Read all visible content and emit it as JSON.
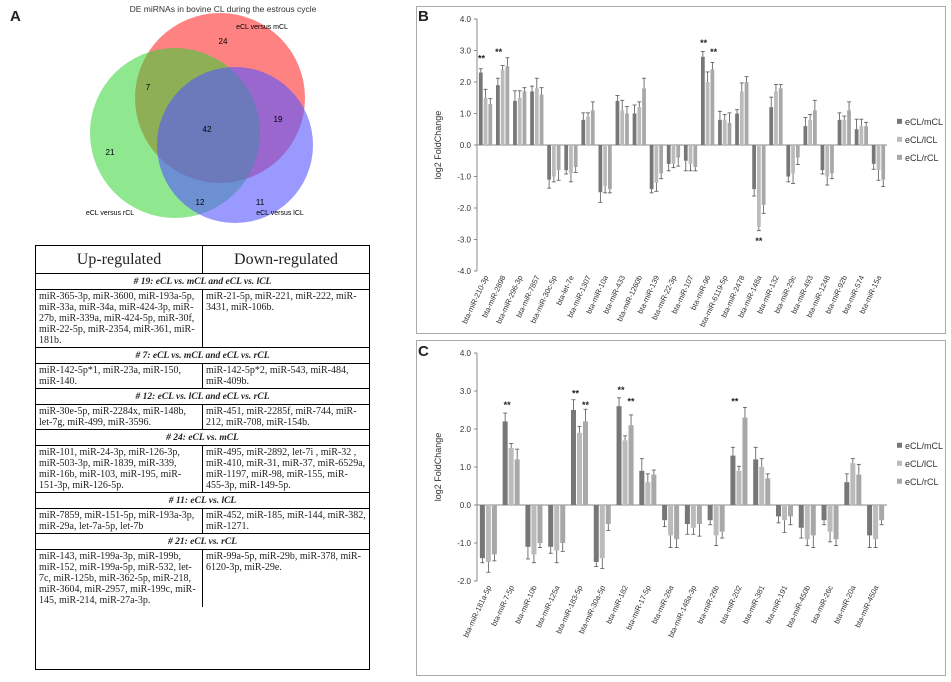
{
  "panels": {
    "a": "A",
    "b": "B",
    "c": "C"
  },
  "venn": {
    "title": "DE miRNAs in bovine CL during the estrous cycle",
    "sets": [
      {
        "name": "eCL versus mCL",
        "color": "#ff5a5a"
      },
      {
        "name": "eCL versus rCL",
        "color": "#3cdc3c"
      },
      {
        "name": "eCL versus lCL",
        "color": "#5a5aff"
      }
    ],
    "counts": {
      "only_m": "24",
      "only_r": "21",
      "only_l": "11",
      "m_r": "7",
      "m_l": "19",
      "r_l": "12",
      "all": "42"
    }
  },
  "table": {
    "headers": [
      "Up-regulated",
      "Down-regulated"
    ],
    "groups": [
      {
        "title": "# 19: eCL vs. mCL and eCL vs. lCL",
        "up": "miR-365-3p, miR-3600, miR-193a-5p, miR-33a, miR-34a, miR-424-3p, miR-27b, miR-339a, miR-424-5p, miR-30f, miR-22-5p, miR-2354, miR-361, miR-181b.",
        "down": "miR-21-5p, miR-221, miR-222, miR-3431, miR-106b."
      },
      {
        "title": "# 7: eCL vs. mCL and eCL vs. rCL",
        "up": "miR-142-5p*1, miR-23a, miR-150, miR-140.",
        "down": "miR-142-5p*2, miR-543, miR-484, miR-409b."
      },
      {
        "title": "# 12: eCL vs. lCL and eCL vs. rCL",
        "up": "miR-30e-5p, miR-2284x, miR-148b, let-7g, miR-499, miR-3596.",
        "down": "miR-451, miR-2285f, miR-744, miR-212, miR-708, miR-154b."
      },
      {
        "title": "# 24: eCL vs. mCL",
        "up": "miR-101, miR-24-3p, miR-126-3p, miR-503-3p, miR-1839, miR-339, miR-16b, miR-103, miR-195, miR-151-3p, miR-126-5p.",
        "down": "miR-495, miR-2892, let-7i , miR-32 , miR-410, miR-31, miR-37, miR-6529a, miR-1197, miR-98, miR-155, miR-455-3p, miR-149-5p."
      },
      {
        "title": "# 11: eCL vs. lCL",
        "up": "miR-7859, miR-151-5p, miR-193a-3p, miR-29a, let-7a-5p, let-7b",
        "down": "miR-452, miR-185, miR-144, miR-382, miR-1271."
      },
      {
        "title": "# 21: eCL vs. rCL",
        "up": "miR-143, miR-199a-3p, miR-199b, miR-152, miR-199a-5p, miR-532, let-7c, miR-125b, miR-362-5p, miR-218, miR-3604, miR-2957, miR-199c, miR-145, miR-214, miR-27a-3p.",
        "down": "miR-99a-5p, miR-29b, miR-378, miR-6120-3p, miR-29e."
      }
    ]
  },
  "chart_data": [
    {
      "id": "B",
      "type": "bar",
      "ylabel": "log2 FoldChange",
      "ylim": [
        -4,
        4
      ],
      "yticks": [
        "4.0",
        "3.0",
        "2.0",
        "1.0",
        "0.0",
        "-1.0",
        "-2.0",
        "-3.0",
        "-4.0"
      ],
      "legend": [
        "eCL/mCL",
        "eCL/lCL",
        "eCL/rCL"
      ],
      "series_colors": [
        "#777777",
        "#bbbbbb",
        "#a8a8a8"
      ],
      "categories": [
        "bta-miR-210-3p",
        "bta-miR-2898",
        "bta-miR-296-3p",
        "bta-miR-7857",
        "bta-miR-30c-5p",
        "bta-let-7e",
        "bta-miR-1307",
        "bta-miR-10a",
        "bta-miR-433",
        "bta-miR-1260b",
        "bta-miR-139",
        "bta-miR-22-3p",
        "bta-miR-107",
        "bta-miR-96",
        "bta-miR-6119-5p",
        "bta-miR-2478",
        "bta-miR-148a",
        "bta-miR-132",
        "bta-miR-29c",
        "bta-miR-493",
        "bta-miR-1248",
        "bta-miR-92b",
        "bta-miR-574",
        "bta-miR-15a"
      ],
      "series": [
        {
          "name": "eCL/mCL",
          "values": [
            2.3,
            1.9,
            1.4,
            1.7,
            -1.1,
            -0.8,
            0.8,
            -1.5,
            1.4,
            1.0,
            -1.4,
            -0.6,
            -0.5,
            2.8,
            0.8,
            1.0,
            -1.4,
            1.2,
            -1.0,
            0.6,
            -0.8,
            0.8,
            0.5,
            -0.6
          ]
        },
        {
          "name": "eCL/lCL",
          "values": [
            1.5,
            2.4,
            1.5,
            1.8,
            -1.0,
            -0.9,
            0.9,
            -1.3,
            1.1,
            1.2,
            -1.2,
            -0.6,
            -0.6,
            2.0,
            0.8,
            1.7,
            -2.6,
            1.7,
            -0.9,
            0.8,
            -1.0,
            0.8,
            0.6,
            -0.8
          ]
        },
        {
          "name": "eCL/rCL",
          "values": [
            1.3,
            2.5,
            1.7,
            1.6,
            -0.8,
            -0.7,
            1.1,
            -1.4,
            1.0,
            1.8,
            -0.9,
            -0.4,
            -0.7,
            2.4,
            0.7,
            2.0,
            -1.9,
            1.8,
            -0.4,
            1.1,
            -0.9,
            1.1,
            0.6,
            -1.1
          ]
        }
      ],
      "significance": [
        {
          "category": "bta-miR-210-3p",
          "label": "**",
          "pos": "above"
        },
        {
          "category": "bta-miR-2898",
          "label": "**",
          "pos": "above"
        },
        {
          "category": "bta-miR-96",
          "label": "**",
          "pos": "above"
        },
        {
          "category": "bta-miR-96",
          "label": "**",
          "pos": "above2"
        },
        {
          "category": "bta-miR-148a",
          "label": "**",
          "pos": "below"
        }
      ]
    },
    {
      "id": "C",
      "type": "bar",
      "ylabel": "log2 FoldChange",
      "ylim": [
        -2,
        4
      ],
      "yticks": [
        "4.0",
        "3.0",
        "2.0",
        "1.0",
        "0.0",
        "-1.0",
        "-2.0"
      ],
      "legend": [
        "eCL/mCL",
        "eCL/lCL",
        "eCL/rCL"
      ],
      "series_colors": [
        "#777777",
        "#bbbbbb",
        "#a8a8a8"
      ],
      "categories": [
        "bta-miR-181a-5p",
        "bta-miR-7-5p",
        "bta-miR-10b",
        "bta-miR-125a",
        "bta-miR-183-5p",
        "bta-miR-30a-5p",
        "bta-miR-182",
        "bta-miR-17-5p",
        "bta-miR-26a",
        "bta-miR-148a-3p",
        "bta-miR-26b",
        "bta-miR-202",
        "bta-miR-381",
        "bta-miR-191",
        "bta-miR-450b",
        "bta-miR-26c",
        "bta-miR-20a",
        "bta-miR-450a"
      ],
      "series": [
        {
          "name": "eCL/mCL",
          "values": [
            -1.4,
            2.2,
            -1.1,
            -1.1,
            2.5,
            -1.5,
            2.6,
            0.9,
            -0.4,
            -0.5,
            -0.4,
            1.3,
            1.2,
            -0.3,
            -0.6,
            -0.4,
            0.6,
            -0.8
          ]
        },
        {
          "name": "eCL/lCL",
          "values": [
            -1.5,
            1.5,
            -1.3,
            -1.2,
            1.9,
            -1.4,
            1.7,
            0.6,
            -0.8,
            -0.6,
            -0.8,
            0.9,
            1.0,
            -0.4,
            -0.9,
            -0.7,
            1.1,
            -0.9
          ]
        },
        {
          "name": "eCL/rCL",
          "values": [
            -1.3,
            1.2,
            -1.0,
            -1.0,
            2.2,
            -0.5,
            2.1,
            0.8,
            -0.9,
            -0.5,
            -0.7,
            2.3,
            0.7,
            -0.3,
            -0.8,
            -0.9,
            0.8,
            -0.4
          ]
        }
      ],
      "significance": [
        {
          "category": "bta-miR-7-5p",
          "label": "**",
          "pos": "above"
        },
        {
          "category": "bta-miR-183-5p",
          "label": "**",
          "pos": "above"
        },
        {
          "category": "bta-miR-183-5p",
          "label": "**",
          "pos": "above2"
        },
        {
          "category": "bta-miR-182",
          "label": "**",
          "pos": "above"
        },
        {
          "category": "bta-miR-182",
          "label": "**",
          "pos": "above2"
        },
        {
          "category": "bta-miR-202",
          "label": "**",
          "pos": "above"
        }
      ]
    }
  ]
}
